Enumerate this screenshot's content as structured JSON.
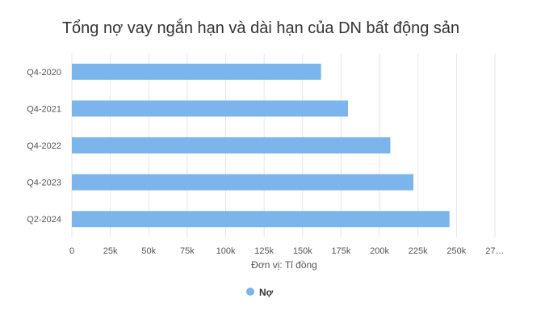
{
  "chart_data": {
    "type": "bar",
    "orientation": "horizontal",
    "title": "Tổng nợ vay ngắn hạn và dài hạn của DN bất động sản",
    "categories": [
      "Q4-2020",
      "Q4-2021",
      "Q4-2022",
      "Q4-2023",
      "Q2-2024"
    ],
    "series": [
      {
        "name": "Nợ",
        "color": "#7cb5ec",
        "values": [
          162000,
          179500,
          207000,
          222000,
          245500
        ]
      }
    ],
    "xlim": [
      0,
      275000
    ],
    "x_ticks": [
      "0",
      "25k",
      "50k",
      "75k",
      "100k",
      "125k",
      "150k",
      "175k",
      "200k",
      "225k",
      "250k",
      "27…"
    ],
    "xlabel": "Đơn vị: Tỉ đồng",
    "grid": true,
    "legend": "bottom-center"
  }
}
